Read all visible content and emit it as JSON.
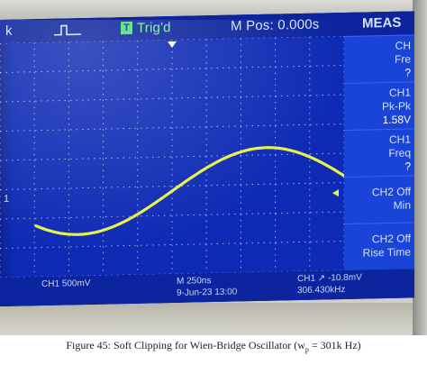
{
  "scope": {
    "status_left": "k",
    "trig_box_label": "T",
    "trig_status": "Trig'd",
    "m_pos": "M Pos: 0.000s",
    "menu_title": "MEAS",
    "ch1_marker": "1",
    "side_buttons": [
      {
        "line1": "CH",
        "line2": "Fre",
        "value": "?"
      },
      {
        "line1": "CH1",
        "line2": "Pk-Pk",
        "value": "1.58V"
      },
      {
        "line1": "CH1",
        "line2": "Freq",
        "value": "?"
      },
      {
        "line1": "CH2 Off",
        "line2": "Min",
        "value": ""
      },
      {
        "line1": "CH2 Off",
        "line2": "Rise Time",
        "value": ""
      }
    ],
    "ch1_scale": "CH1  500mV",
    "timebase": "M 250ns",
    "date_time": "9-Jun-23 13:00",
    "trigger_info": "CH1 ↗ -10.8mV",
    "frequency": "306.430kHz",
    "colors": {
      "screen": "#0f2bb5",
      "trace": "#e9f245",
      "grid": "#cfe0ff"
    }
  },
  "caption": {
    "prefix": "Figure 45: Soft Clipping for Wien-Bridge Oscillator (w",
    "subscript": "p",
    "suffix": " = 301k Hz)"
  }
}
